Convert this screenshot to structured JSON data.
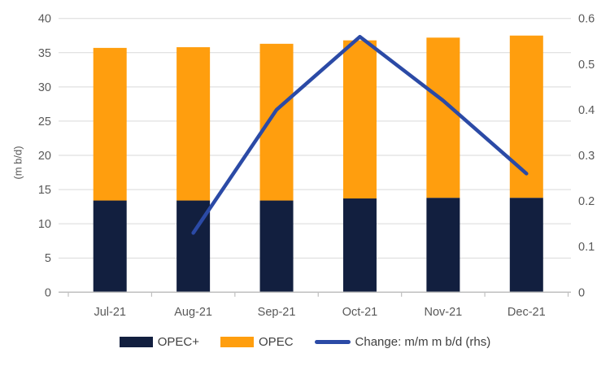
{
  "chart_data": {
    "type": "combo",
    "title": "",
    "categories": [
      "Jul-21",
      "Aug-21",
      "Sep-21",
      "Oct-21",
      "Nov-21",
      "Dec-21"
    ],
    "series": [
      {
        "name": "OPEC+",
        "type": "bar",
        "stacked": true,
        "axis": "left",
        "color": "#121F3F",
        "values": [
          13.4,
          13.4,
          13.4,
          13.7,
          13.8,
          13.8
        ]
      },
      {
        "name": "OPEC",
        "type": "bar",
        "stacked": true,
        "axis": "left",
        "color": "#FF9E0E",
        "values": [
          22.3,
          22.4,
          22.9,
          23.1,
          23.4,
          23.7
        ]
      },
      {
        "name": "Change: m/m m b/d (rhs)",
        "type": "line",
        "axis": "right",
        "color": "#2B4AA6",
        "values": [
          null,
          0.13,
          0.4,
          0.56,
          0.42,
          0.26
        ]
      }
    ],
    "stacked_totals": [
      35.7,
      35.8,
      36.3,
      36.8,
      37.2,
      37.5
    ],
    "left_axis": {
      "label": "(m b/d)",
      "min": 0,
      "max": 40,
      "tick_values": [
        0,
        5,
        10,
        15,
        20,
        25,
        30,
        35,
        40
      ]
    },
    "right_axis": {
      "label": "",
      "min": 0,
      "max": 0.6,
      "tick_values": [
        0,
        0.1,
        0.2,
        0.3,
        0.4,
        0.5,
        0.6
      ]
    },
    "grid": true,
    "legend_position": "bottom"
  },
  "colors": {
    "background": "#FFFFFF",
    "gridline": "#D9D9D9",
    "axis_line": "#BFBFBF",
    "tick_text": "#595959",
    "legend_text": "#404040"
  }
}
